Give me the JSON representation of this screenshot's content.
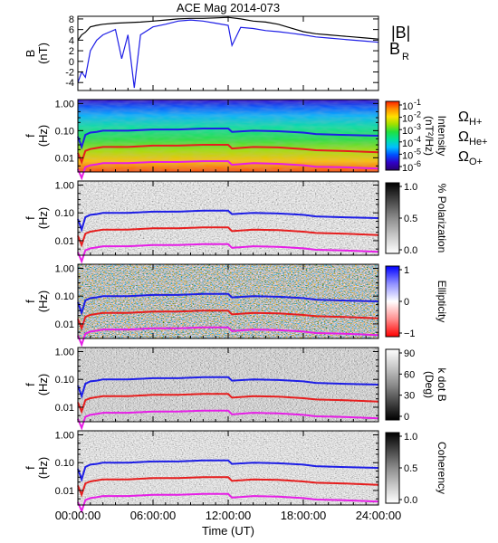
{
  "chart_data": {
    "title": "ACE Mag 2014-073",
    "time_axis": {
      "label": "Time (UT)",
      "range_hours": [
        0,
        24
      ],
      "ticks": [
        "00:00:00",
        "06:00:00",
        "12:00:00",
        "18:00:00",
        "24:00:00"
      ],
      "tick_hours": [
        0,
        6,
        12,
        18,
        24
      ]
    },
    "gyrofrequency_lines": [
      {
        "name": "ΩH+",
        "symbol": "Ω",
        "subscript": "H+",
        "color": "#1e1ee6",
        "hours": [
          0,
          0.3,
          0.6,
          1,
          1.5,
          2,
          4,
          6,
          8,
          10,
          12,
          12.3,
          14,
          16,
          18,
          19,
          21,
          24
        ],
        "values": [
          0.06,
          0.025,
          0.07,
          0.085,
          0.09,
          0.1,
          0.1,
          0.11,
          0.11,
          0.12,
          0.12,
          0.09,
          0.1,
          0.095,
          0.085,
          0.075,
          0.07,
          0.065
        ]
      },
      {
        "name": "ΩHe+",
        "symbol": "Ω",
        "subscript": "He+",
        "color": "#e61e1e",
        "hours": [
          0,
          0.3,
          0.6,
          1,
          1.5,
          2,
          4,
          6,
          8,
          10,
          12,
          12.3,
          14,
          16,
          18,
          19,
          21,
          24
        ],
        "values": [
          0.015,
          0.007,
          0.018,
          0.021,
          0.023,
          0.025,
          0.025,
          0.028,
          0.028,
          0.03,
          0.03,
          0.022,
          0.025,
          0.024,
          0.021,
          0.019,
          0.018,
          0.016
        ]
      },
      {
        "name": "ΩO+",
        "symbol": "Ω",
        "subscript": "O+",
        "color": "#e61ee6",
        "hours": [
          0,
          0.3,
          0.6,
          1,
          1.5,
          2,
          4,
          6,
          8,
          10,
          12,
          12.3,
          14,
          16,
          18,
          19,
          21,
          24
        ],
        "values": [
          0.0038,
          0.0018,
          0.0045,
          0.0053,
          0.0057,
          0.0063,
          0.0063,
          0.007,
          0.007,
          0.0075,
          0.0075,
          0.0055,
          0.0063,
          0.006,
          0.0053,
          0.0047,
          0.0045,
          0.004
        ]
      }
    ],
    "panels": [
      {
        "id": "mag",
        "type": "line",
        "ylabel_top": "B",
        "ylabel_bottom": "(nT)",
        "ylim": [
          -5.5,
          8.5
        ],
        "y_ticks": [
          "-4",
          "-2",
          "0",
          "2",
          "4",
          "6",
          "8"
        ],
        "y_tick_values": [
          -4,
          -2,
          0,
          2,
          4,
          6,
          8
        ],
        "series": [
          {
            "name": "|B|",
            "color": "#000000",
            "hours": [
              0,
              0.3,
              0.6,
              1,
              1.5,
              2,
              3,
              4,
              5,
              6,
              7,
              8,
              9,
              10,
              11,
              12,
              13,
              14,
              15,
              16,
              17,
              18,
              19,
              20,
              21,
              22,
              23,
              24
            ],
            "values": [
              4,
              5,
              5.5,
              6.5,
              6.8,
              7,
              7.2,
              7.3,
              7.4,
              7.6,
              7.8,
              8,
              8.1,
              8.1,
              8.2,
              8.3,
              8,
              7.6,
              7.4,
              7,
              6.3,
              5.6,
              5.2,
              5,
              4.8,
              4.6,
              4.4,
              4.2
            ]
          },
          {
            "name": "BR",
            "label": "B",
            "subscript": "R",
            "color": "#1e1ee6",
            "hours": [
              0,
              0.3,
              0.6,
              1,
              1.5,
              2,
              3,
              3.5,
              4,
              4.5,
              5,
              6,
              7,
              8,
              9,
              10,
              11,
              12,
              12.3,
              13,
              14,
              15,
              16,
              17,
              18,
              19,
              20,
              21,
              22,
              23,
              24
            ],
            "values": [
              -4,
              -2,
              -3,
              2,
              4,
              5,
              6,
              0.5,
              5,
              -5,
              5,
              6.5,
              7,
              7.6,
              7.8,
              7.6,
              7.2,
              6.8,
              3,
              6.4,
              6.2,
              5.8,
              5.6,
              5.3,
              5,
              4.6,
              4.4,
              4.2,
              4,
              3.8,
              3.6
            ]
          }
        ]
      },
      {
        "id": "intensity",
        "type": "heatmap",
        "ylabel_top": "f",
        "ylabel_bottom": "(Hz)",
        "y_scale": "log",
        "ylim": [
          0.003,
          1.4
        ],
        "y_ticks": [
          "1.00",
          "0.10",
          "0.01"
        ],
        "y_tick_values": [
          1,
          0.1,
          0.01
        ],
        "colorbar": {
          "label": "Intensity",
          "units": "(nT²/Hz)",
          "scale": "log",
          "colors": [
            "#28006e",
            "#3000c8",
            "#0050ff",
            "#00c0ff",
            "#00e0a0",
            "#20e040",
            "#a0e000",
            "#ffe000",
            "#ff9000",
            "#ff2000"
          ],
          "tick_labels": [
            {
              "base": "10",
              "exp": "-1"
            },
            {
              "base": "10",
              "exp": "-2"
            },
            {
              "base": "10",
              "exp": "-3"
            },
            {
              "base": "10",
              "exp": "-4"
            },
            {
              "base": "10",
              "exp": "-5"
            },
            {
              "base": "10",
              "exp": "-6"
            }
          ]
        }
      },
      {
        "id": "polarization",
        "type": "heatmap",
        "ylabel_top": "f",
        "ylabel_bottom": "(Hz)",
        "y_scale": "log",
        "ylim": [
          0.003,
          1.4
        ],
        "y_ticks": [
          "1.00",
          "0.10",
          "0.01"
        ],
        "y_tick_values": [
          1,
          0.1,
          0.01
        ],
        "colorbar": {
          "label": "% Polarization",
          "colors": [
            "#ffffff",
            "#c8c8c8",
            "#8c8c8c",
            "#464646",
            "#000000"
          ],
          "tick_labels": [
            "1.0",
            "0.5",
            "0.0"
          ]
        }
      },
      {
        "id": "ellipticity",
        "type": "heatmap",
        "ylabel_top": "f",
        "ylabel_bottom": "(Hz)",
        "y_scale": "log",
        "ylim": [
          0.003,
          1.4
        ],
        "y_ticks": [
          "1.00",
          "0.10",
          "0.01"
        ],
        "y_tick_values": [
          1,
          0.1,
          0.01
        ],
        "colorbar": {
          "label": "Ellipticity",
          "colors": [
            "#ff0000",
            "#ff9090",
            "#ffffff",
            "#9090ff",
            "#0000ff"
          ],
          "tick_labels": [
            "1",
            "0",
            "−1"
          ]
        }
      },
      {
        "id": "kdotb",
        "type": "heatmap",
        "ylabel_top": "f",
        "ylabel_bottom": "(Hz)",
        "y_scale": "log",
        "ylim": [
          0.003,
          1.4
        ],
        "y_ticks": [
          "1.00",
          "0.10",
          "0.01"
        ],
        "y_tick_values": [
          1,
          0.1,
          0.01
        ],
        "colorbar": {
          "label": "k dot B",
          "units": "(Deg)",
          "colors": [
            "#000000",
            "#464646",
            "#8c8c8c",
            "#c8c8c8",
            "#ffffff"
          ],
          "tick_labels": [
            "90",
            "60",
            "30",
            "0"
          ]
        }
      },
      {
        "id": "coherency",
        "type": "heatmap",
        "ylabel_top": "f",
        "ylabel_bottom": "(Hz)",
        "y_scale": "log",
        "ylim": [
          0.003,
          1.4
        ],
        "y_ticks": [
          "1.00",
          "0.10",
          "0.01"
        ],
        "y_tick_values": [
          1,
          0.1,
          0.01
        ],
        "colorbar": {
          "label": "Coherency",
          "colors": [
            "#ffffff",
            "#c8c8c8",
            "#8c8c8c",
            "#464646",
            "#000000"
          ],
          "tick_labels": [
            "1.0",
            "0.5",
            "0.0"
          ]
        }
      }
    ]
  }
}
